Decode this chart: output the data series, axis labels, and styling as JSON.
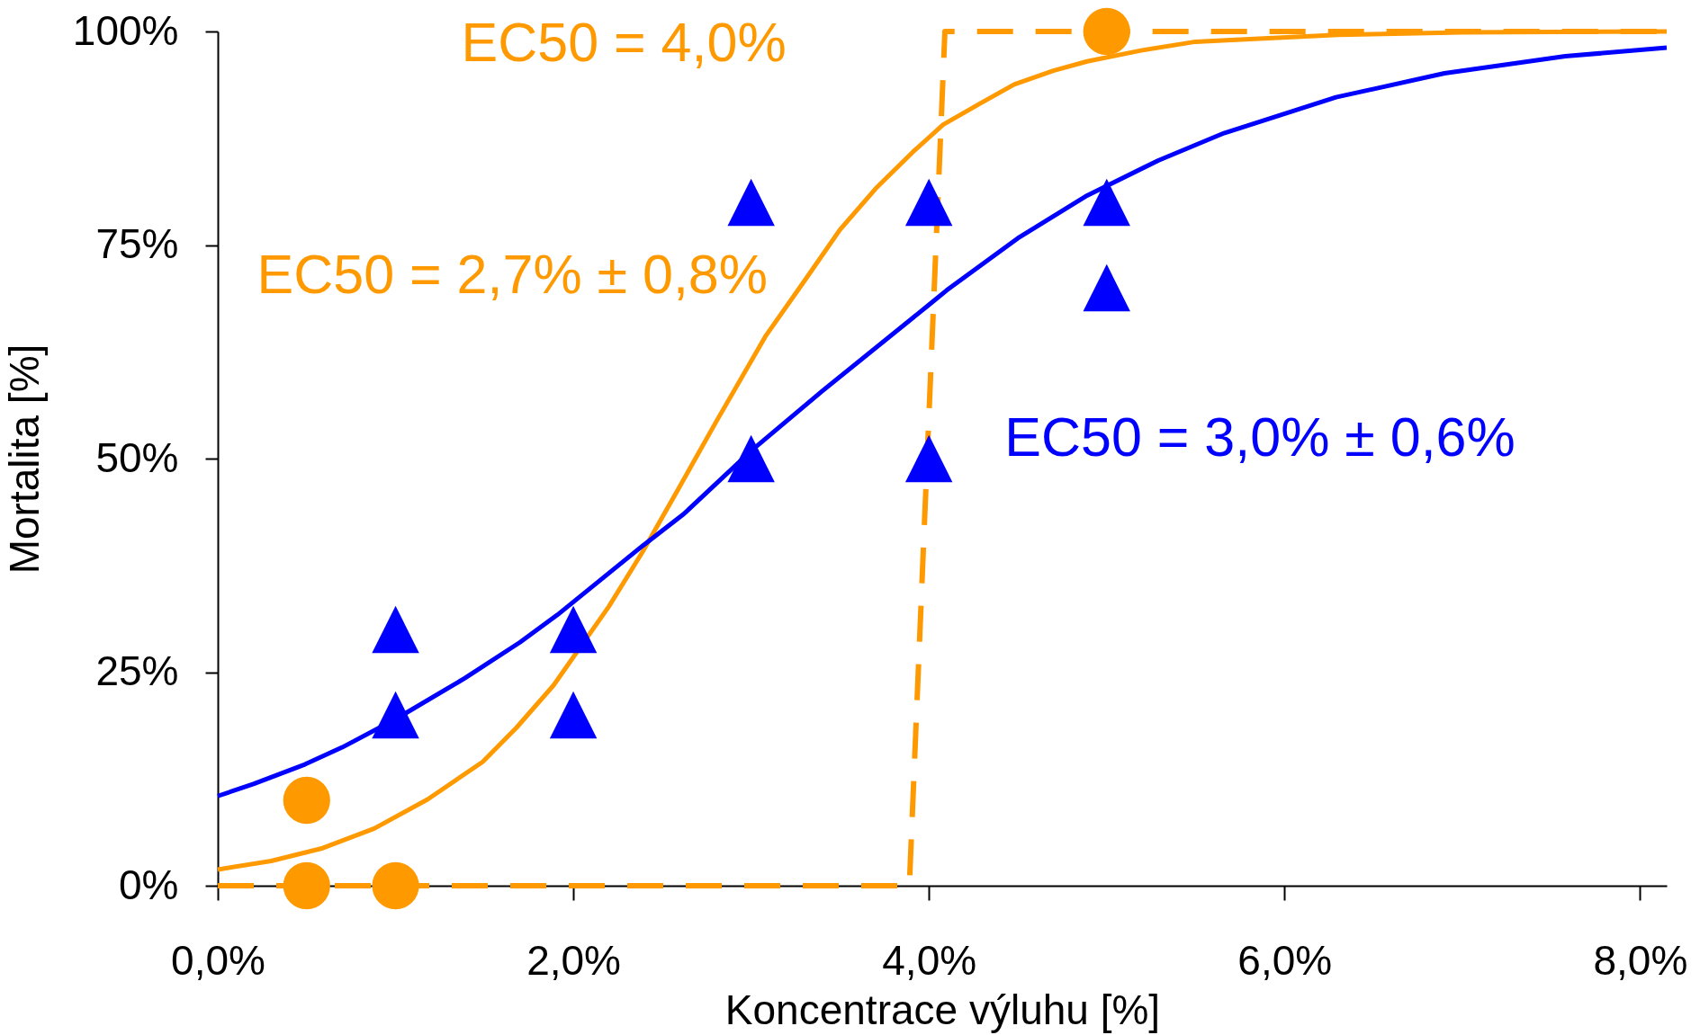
{
  "chart_data": {
    "type": "scatter",
    "xlabel": "Koncentrace výluhu [%]",
    "ylabel": "Mortalita [%]",
    "xlim": [
      0,
      8.15
    ],
    "xticks": [
      {
        "value": 0,
        "label": "0,0%"
      },
      {
        "value": 2,
        "label": "2,0%"
      },
      {
        "value": 4,
        "label": "4,0%"
      },
      {
        "value": 6,
        "label": "6,0%"
      },
      {
        "value": 8,
        "label": "8,0%"
      }
    ],
    "ylim": [
      0,
      100
    ],
    "yticks": [
      {
        "value": 0,
        "label": "0%"
      },
      {
        "value": 25,
        "label": "25%"
      },
      {
        "value": 50,
        "label": "50%"
      },
      {
        "value": 75,
        "label": "75%"
      },
      {
        "value": 100,
        "label": "100%"
      }
    ],
    "series": [
      {
        "type": "line",
        "name": "EC50 = 2,7% ± 0,8%",
        "color": "#ff9900",
        "line_style": "solid",
        "x": [
          0,
          0.3,
          0.59,
          0.88,
          1.18,
          1.49,
          1.68,
          1.89,
          2.2,
          2.39,
          2.6,
          2.8,
          3.08,
          3.31,
          3.5,
          3.7,
          3.91,
          4.08,
          4.29,
          4.48,
          4.7,
          4.89,
          5.2,
          5.5,
          5.7,
          6.3,
          7.0,
          8.15
        ],
        "values": [
          1.9,
          2.9,
          4.4,
          6.7,
          10.1,
          14.5,
          18.5,
          23.5,
          32.7,
          39.1,
          46.8,
          54.2,
          64.3,
          71.1,
          76.8,
          81.6,
          85.9,
          89.1,
          91.6,
          93.8,
          95.4,
          96.5,
          97.8,
          98.8,
          99.0,
          99.6,
          99.9,
          100
        ]
      },
      {
        "type": "line",
        "name": "EC50 = 4,0%",
        "color": "#ff9900",
        "line_style": "dashed",
        "x": [
          0,
          3.89,
          4.09,
          8.15
        ],
        "values": [
          0,
          0,
          100,
          100
        ]
      },
      {
        "color": "#ff9900",
        "marker": "circle",
        "x": [
          0.5,
          0.5,
          1,
          5
        ],
        "values": [
          10,
          0,
          0,
          100
        ]
      },
      {
        "color": "#0000ff",
        "marker": "triangle",
        "x": [
          1,
          1,
          2,
          2,
          3,
          3,
          4,
          4,
          5,
          5
        ],
        "values": [
          30,
          20,
          30,
          20,
          80,
          50,
          80,
          50,
          80,
          70
        ]
      },
      {
        "type": "line",
        "name": "EC50 = 3,0% ± 0,6%",
        "color": "#0000ff",
        "line_style": "solid",
        "x": [
          0,
          0.2,
          0.49,
          0.7,
          1.0,
          1.39,
          1.7,
          1.91,
          2.39,
          2.62,
          3.0,
          3.4,
          4.0,
          4.1,
          4.5,
          4.89,
          5.29,
          5.66,
          6.29,
          6.9,
          7.58,
          8.15
        ],
        "values": [
          10.5,
          11.9,
          14.2,
          16.2,
          19.5,
          24.3,
          28.5,
          31.7,
          39.8,
          43.5,
          50.9,
          57.9,
          68.0,
          69.7,
          75.8,
          80.8,
          84.9,
          88.1,
          92.3,
          95.1,
          97.1,
          98.1
        ]
      }
    ]
  }
}
